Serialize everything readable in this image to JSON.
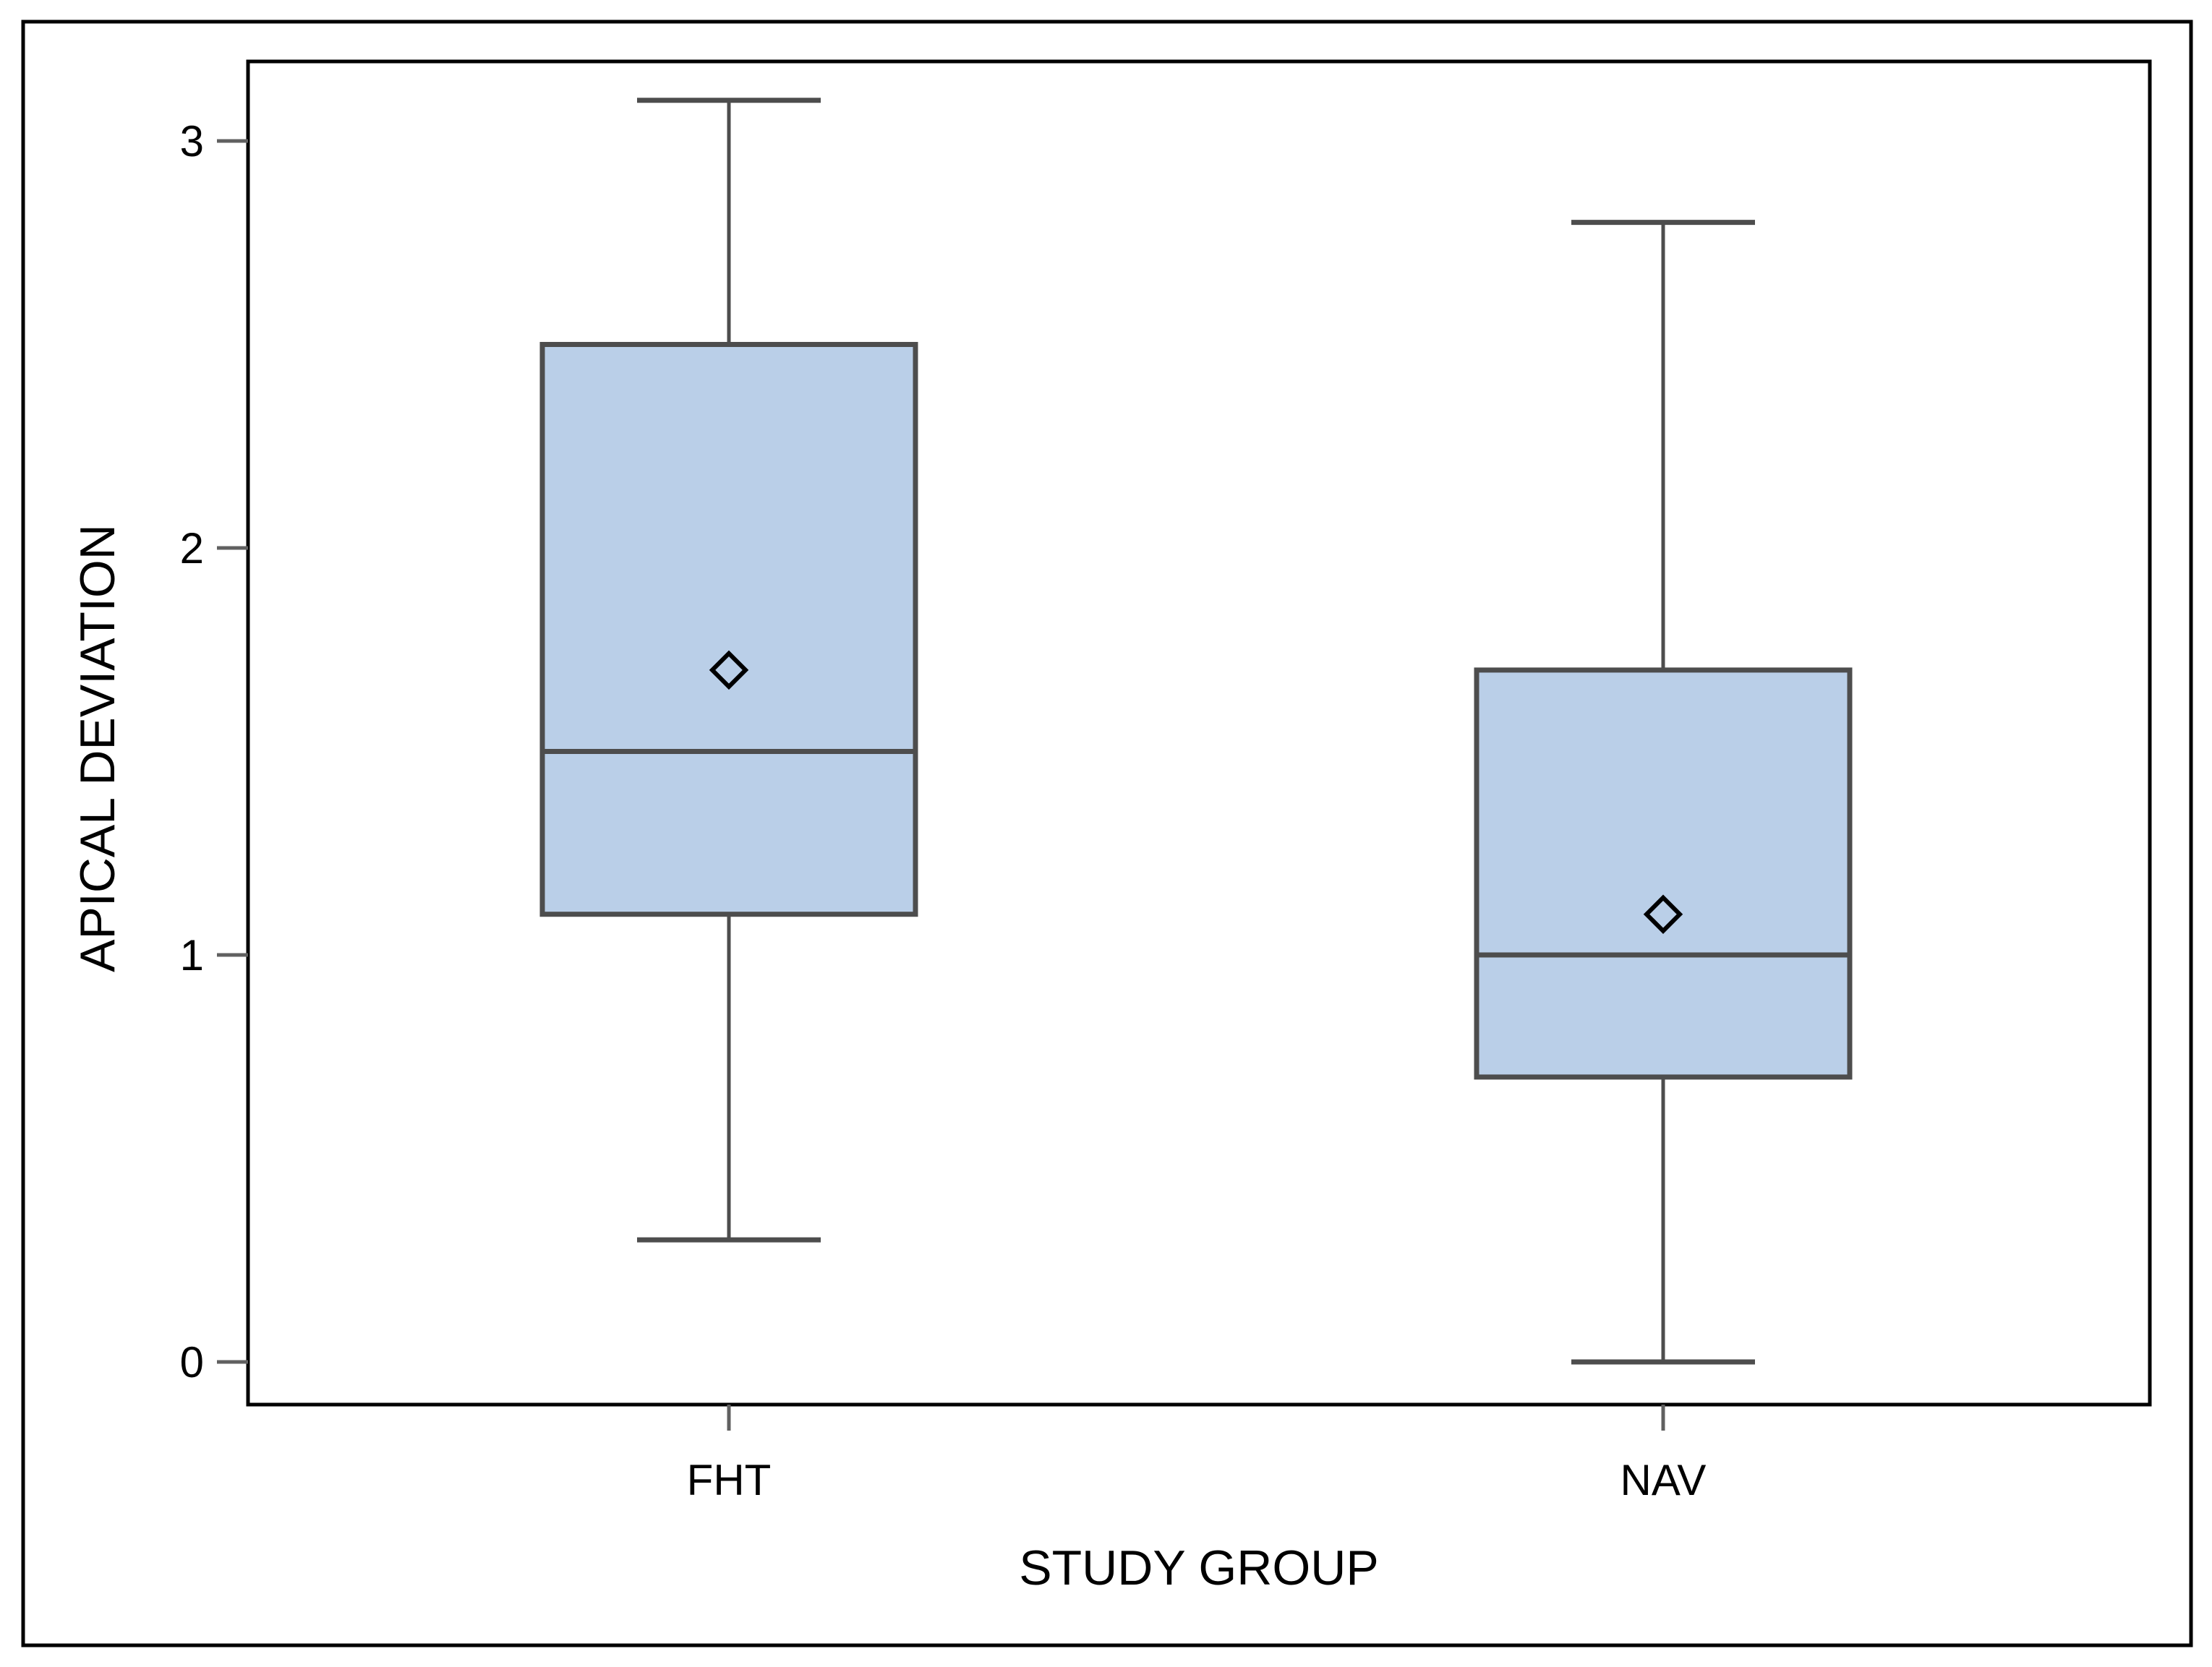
{
  "chart_data": {
    "type": "box",
    "xlabel": "STUDY GROUP",
    "ylabel": "APICAL DEVIATION",
    "ylim": [
      -0.1,
      3.2
    ],
    "yticks": [
      0,
      1,
      2,
      3
    ],
    "ytick_labels": [
      "0",
      "1",
      "2",
      "3"
    ],
    "categories": [
      "FHT",
      "NAV"
    ],
    "boxes": [
      {
        "category": "FHT",
        "min": 0.3,
        "q1": 1.1,
        "median": 1.5,
        "q3": 2.5,
        "max": 3.1,
        "mean": 1.7
      },
      {
        "category": "NAV",
        "min": 0.0,
        "q1": 0.7,
        "median": 1.0,
        "q3": 1.7,
        "max": 2.8,
        "mean": 1.1
      }
    ],
    "legend": false,
    "grid": false
  },
  "colors": {
    "box_fill": "#bacfe8",
    "box_stroke": "#4d4d4d",
    "whisker": "#4d4d4d",
    "frame": "#000000",
    "axis_tick": "#606060",
    "mean_marker": "#000000"
  }
}
